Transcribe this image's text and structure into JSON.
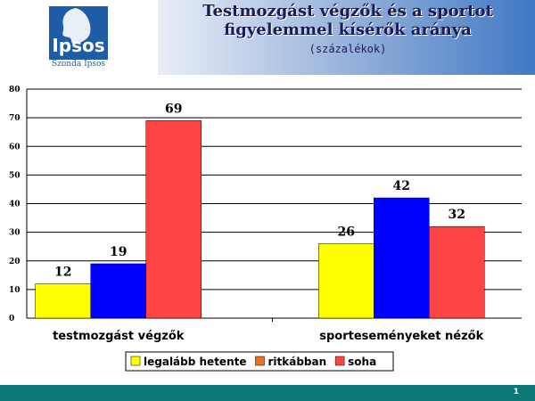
{
  "header": {
    "logo_text": "Ipsos",
    "logo_sub": "Szonda Ipsos",
    "title_line1": "Testmozgást végzők és a sportot",
    "title_line2": "figyelemmel kísérők aránya",
    "subtitle": "(százalékok)"
  },
  "footer": {
    "page_number": "1"
  },
  "colors": {
    "legalabb_hetente": "#ffff00",
    "ritkabban": "#0000ff",
    "soha": "#ff4444"
  },
  "chart_data": {
    "type": "bar",
    "title": "Testmozgást végzők és a sportot figyelemmel kísérők aránya",
    "xlabel": "",
    "ylabel": "",
    "ylim": [
      0,
      80
    ],
    "yticks": [
      "0",
      "10",
      "20",
      "30",
      "40",
      "50",
      "60",
      "70",
      "80"
    ],
    "grid": true,
    "legend_position": "bottom",
    "categories": [
      "testmozgást végzők",
      "sporteseményeket nézők"
    ],
    "series": [
      {
        "name": "legalább hetente",
        "color": "#ffff00",
        "legend_swatch": "#ffff00",
        "values": [
          12,
          26
        ]
      },
      {
        "name": "ritkábban",
        "color": "#0000ff",
        "legend_swatch": "#f07020",
        "values": [
          19,
          42
        ]
      },
      {
        "name": "soha",
        "color": "#ff4444",
        "legend_swatch": "#ff4444",
        "values": [
          69,
          32
        ]
      }
    ]
  }
}
